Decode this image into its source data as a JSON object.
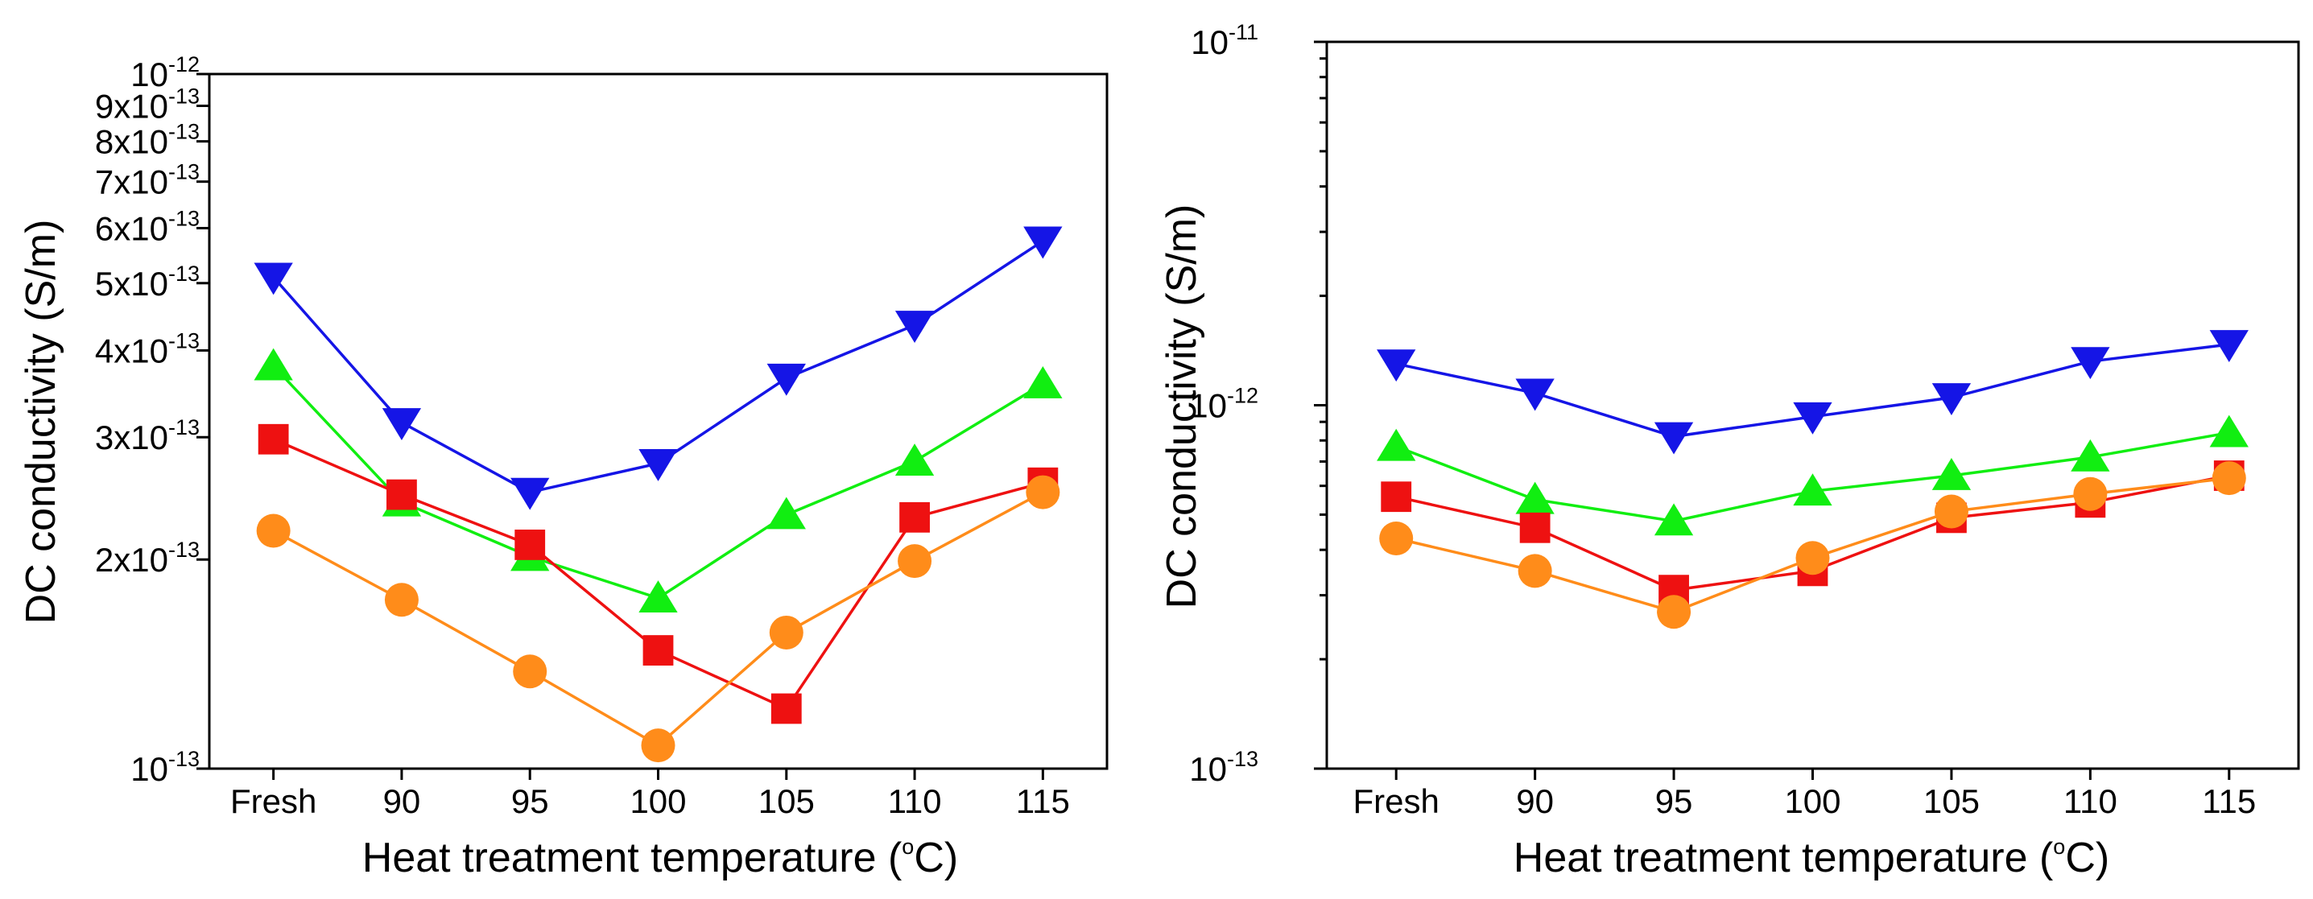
{
  "chart_data": [
    {
      "type": "line",
      "yscale": "log",
      "categories": [
        "Fresh",
        "90",
        "95",
        "100",
        "105",
        "110",
        "115"
      ],
      "xlabel": "Heat treatment temperature (°C)",
      "xlabel_parts": {
        "pre": "Heat treatment temperature (",
        "sup": "o",
        "post": "C)"
      },
      "ylabel": "DC conductivity (S/m)",
      "ylim": [
        1e-13,
        1e-12
      ],
      "ytick_labels": [
        {
          "value": 1e-13,
          "base": "10",
          "exp": "-13"
        },
        {
          "value": 2e-13,
          "base": "2x10",
          "exp": "-13"
        },
        {
          "value": 3e-13,
          "base": "3x10",
          "exp": "-13"
        },
        {
          "value": 4e-13,
          "base": "4x10",
          "exp": "-13"
        },
        {
          "value": 5e-13,
          "base": "5x10",
          "exp": "-13"
        },
        {
          "value": 6e-13,
          "base": "6x10",
          "exp": "-13"
        },
        {
          "value": 7e-13,
          "base": "7x10",
          "exp": "-13"
        },
        {
          "value": 8e-13,
          "base": "8x10",
          "exp": "-13"
        },
        {
          "value": 9e-13,
          "base": "9x10",
          "exp": "-13"
        },
        {
          "value": 1e-12,
          "base": "10",
          "exp": "-12"
        }
      ],
      "series": [
        {
          "marker": "triangle-down",
          "color": "#1515e6",
          "values": [
            5.1e-13,
            3.15e-13,
            2.5e-13,
            2.75e-13,
            3.65e-13,
            4.35e-13,
            5.75e-13
          ]
        },
        {
          "marker": "triangle-up",
          "color": "#11ee11",
          "values": [
            3.8e-13,
            2.42e-13,
            2.02e-13,
            1.76e-13,
            2.32e-13,
            2.77e-13,
            3.58e-13
          ]
        },
        {
          "marker": "square",
          "color": "#ee1111",
          "values": [
            2.98e-13,
            2.48e-13,
            2.1e-13,
            1.48e-13,
            1.22e-13,
            2.3e-13,
            2.58e-13
          ]
        },
        {
          "marker": "circle",
          "color": "#ff8c1a",
          "values": [
            2.2e-13,
            1.75e-13,
            1.38e-13,
            1.08e-13,
            1.57e-13,
            1.99e-13,
            2.5e-13
          ]
        }
      ]
    },
    {
      "type": "line",
      "yscale": "log",
      "categories": [
        "Fresh",
        "90",
        "95",
        "100",
        "105",
        "110",
        "115"
      ],
      "xlabel": "Heat treatment temperature (°C)",
      "xlabel_parts": {
        "pre": "Heat treatment temperature (",
        "sup": "o",
        "post": "C)"
      },
      "ylabel": "DC conductivity (S/m)",
      "ylim": [
        1e-13,
        1e-11
      ],
      "ytick_labels": [
        {
          "value": 1e-13,
          "base": "10",
          "exp": "-13"
        },
        {
          "value": 1e-12,
          "base": "10",
          "exp": "-12"
        },
        {
          "value": 1e-11,
          "base": "10",
          "exp": "-11"
        }
      ],
      "series": [
        {
          "marker": "triangle-down",
          "color": "#1515e6",
          "values": [
            1.3e-12,
            1.08e-12,
            8.2e-13,
            9.3e-13,
            1.05e-12,
            1.32e-12,
            1.47e-12
          ]
        },
        {
          "marker": "triangle-up",
          "color": "#11ee11",
          "values": [
            7.7e-13,
            5.5e-13,
            4.8e-13,
            5.8e-13,
            6.4e-13,
            7.2e-13,
            8.4e-13
          ]
        },
        {
          "marker": "square",
          "color": "#ee1111",
          "values": [
            5.6e-13,
            4.6e-13,
            3.1e-13,
            3.5e-13,
            4.9e-13,
            5.4e-13,
            6.4e-13
          ]
        },
        {
          "marker": "circle",
          "color": "#ff8c1a",
          "values": [
            4.3e-13,
            3.5e-13,
            2.7e-13,
            3.8e-13,
            5.1e-13,
            5.7e-13,
            6.3e-13
          ]
        }
      ]
    }
  ]
}
